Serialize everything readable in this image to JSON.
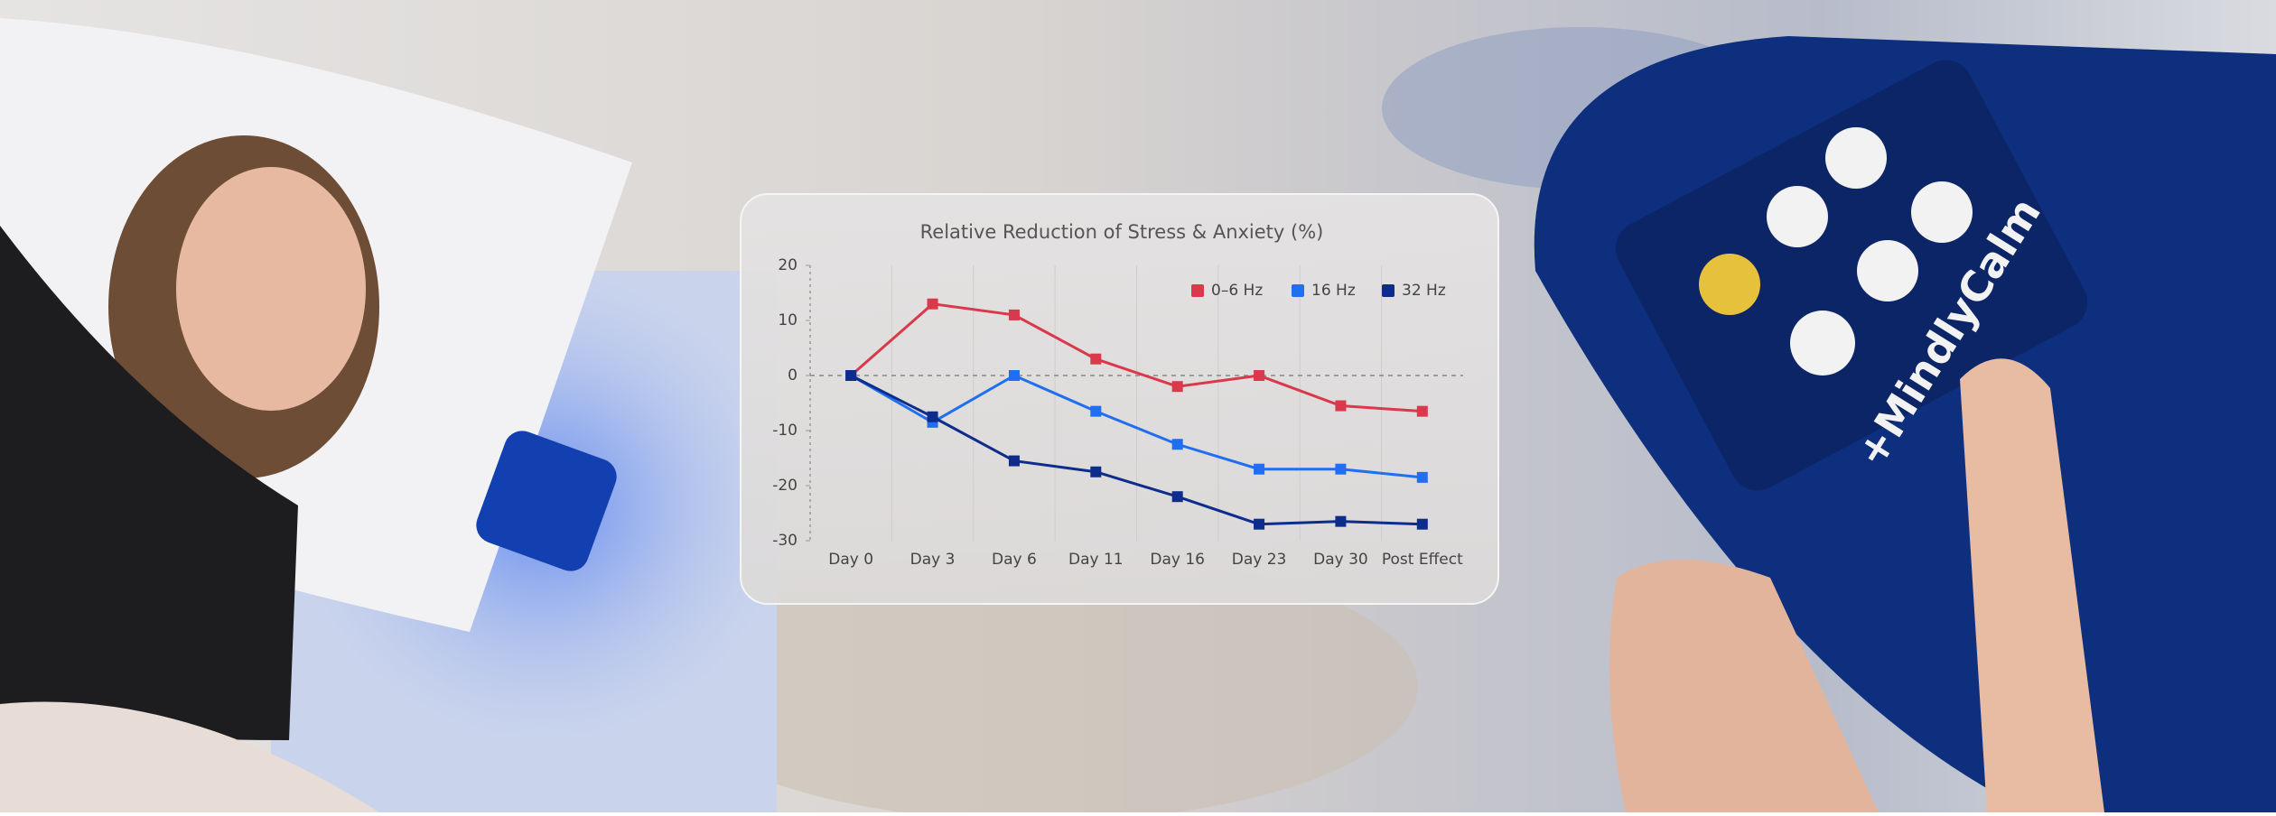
{
  "chart_data": {
    "type": "line",
    "title": "Relative Reduction of Stress & Anxiety (%)",
    "categories": [
      "Day 0",
      "Day 3",
      "Day 6",
      "Day 11",
      "Day 16",
      "Day 23",
      "Day 30",
      "Post Effect"
    ],
    "series": [
      {
        "name": "0–6 Hz",
        "color": "#d9394a",
        "values": [
          0,
          13,
          11,
          3,
          -2,
          0,
          -5.5,
          -6.5
        ]
      },
      {
        "name": "16 Hz",
        "color": "#1f6ff0",
        "values": [
          0,
          -8.5,
          0,
          -6.5,
          -12.5,
          -17,
          -17,
          -18.5
        ]
      },
      {
        "name": "32 Hz",
        "color": "#0d2c8c",
        "values": [
          0,
          -7.5,
          -15.5,
          -17.5,
          -22,
          -27,
          -26.5,
          -27
        ]
      }
    ],
    "ylim": [
      -30,
      20
    ],
    "yticks": [
      -30,
      -20,
      -10,
      0,
      10,
      20
    ],
    "zero_line": true,
    "legend": "top-right"
  },
  "product": {
    "brand": "+MindlyCalm"
  }
}
